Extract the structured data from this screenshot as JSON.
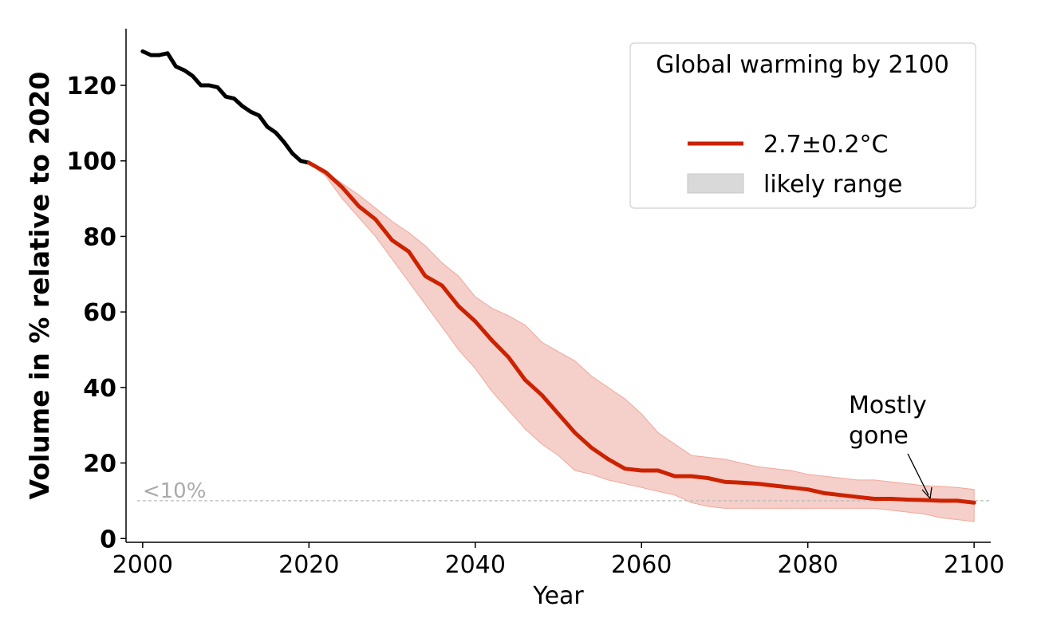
{
  "chart_data": {
    "type": "line",
    "xlabel": "Year",
    "ylabel": "Volume in % relative to 2020",
    "xlim": [
      1998,
      2102
    ],
    "ylim": [
      -1,
      135
    ],
    "xticks": [
      2000,
      2020,
      2040,
      2060,
      2080,
      2100
    ],
    "yticks": [
      0,
      20,
      40,
      60,
      80,
      100,
      120
    ],
    "threshold": {
      "value": 10,
      "label": "<10%"
    },
    "annotation": {
      "text_lines": [
        "Mostly",
        "gone"
      ],
      "x": 2095,
      "y": 10
    },
    "legend": {
      "title": "Global warming by 2100",
      "entries": [
        {
          "label": "2.7±0.2°C",
          "kind": "line"
        },
        {
          "label": "likely range",
          "kind": "patch"
        }
      ],
      "placement": "top-right"
    },
    "colors": {
      "historical": "#000000",
      "projection": "#cc2200",
      "band_fill": "#f5cfc9",
      "band_edge": "#f0a89c",
      "threshold": "#bbbbbb",
      "legend_patch": "#d9d9d9"
    },
    "series": [
      {
        "name": "historical",
        "x": [
          2000,
          2001,
          2002,
          2003,
          2004,
          2005,
          2006,
          2007,
          2008,
          2009,
          2010,
          2011,
          2012,
          2013,
          2014,
          2015,
          2016,
          2017,
          2018,
          2019,
          2020
        ],
        "values": [
          129,
          128,
          128,
          128.5,
          125,
          124,
          122.5,
          120,
          120,
          119.5,
          117,
          116.5,
          114.5,
          113,
          112,
          109,
          107.5,
          105,
          102,
          100,
          99.5
        ]
      },
      {
        "name": "2.7±0.2°C",
        "x": [
          2020,
          2022,
          2024,
          2026,
          2028,
          2030,
          2032,
          2034,
          2036,
          2038,
          2040,
          2042,
          2044,
          2046,
          2048,
          2050,
          2052,
          2054,
          2056,
          2058,
          2060,
          2062,
          2064,
          2066,
          2068,
          2070,
          2072,
          2074,
          2076,
          2078,
          2080,
          2082,
          2084,
          2086,
          2088,
          2090,
          2092,
          2094,
          2096,
          2098,
          2100
        ],
        "values": [
          99.5,
          97,
          93,
          88,
          84.5,
          79,
          76,
          69.5,
          67,
          61.5,
          57.5,
          52.5,
          48,
          42,
          38,
          33,
          28,
          24,
          21,
          18.5,
          18,
          18,
          16.5,
          16.5,
          16,
          15,
          14.8,
          14.5,
          14,
          13.5,
          13,
          12,
          11.5,
          11,
          10.5,
          10.5,
          10.3,
          10.2,
          10,
          10,
          9.5
        ]
      }
    ],
    "band": {
      "x": [
        2020,
        2022,
        2024,
        2026,
        2028,
        2030,
        2032,
        2034,
        2036,
        2038,
        2040,
        2042,
        2044,
        2046,
        2048,
        2050,
        2052,
        2054,
        2056,
        2058,
        2060,
        2062,
        2064,
        2066,
        2068,
        2070,
        2072,
        2074,
        2076,
        2078,
        2080,
        2082,
        2084,
        2086,
        2088,
        2090,
        2092,
        2094,
        2096,
        2098,
        2100
      ],
      "upper": [
        99.5,
        97,
        94,
        91,
        87.5,
        84,
        81,
        77.5,
        73,
        69.5,
        64,
        61,
        59,
        56.5,
        52,
        49.5,
        47,
        43,
        40,
        37,
        33,
        28,
        25,
        22,
        21.5,
        21,
        20,
        19,
        18.5,
        18,
        17,
        16.5,
        16,
        15.5,
        15.5,
        15,
        14.5,
        14,
        13.8,
        13.5,
        13
      ],
      "lower": [
        99.5,
        96,
        90,
        85,
        80,
        74,
        68,
        62,
        56,
        50,
        45,
        39,
        34,
        29,
        25,
        22,
        18,
        17,
        15.5,
        14.5,
        13.5,
        12.5,
        11.5,
        9.5,
        8.5,
        8,
        8,
        8,
        8,
        8,
        8,
        8,
        8,
        8,
        8,
        7.5,
        7,
        6.5,
        5.5,
        5,
        4.5
      ]
    }
  }
}
